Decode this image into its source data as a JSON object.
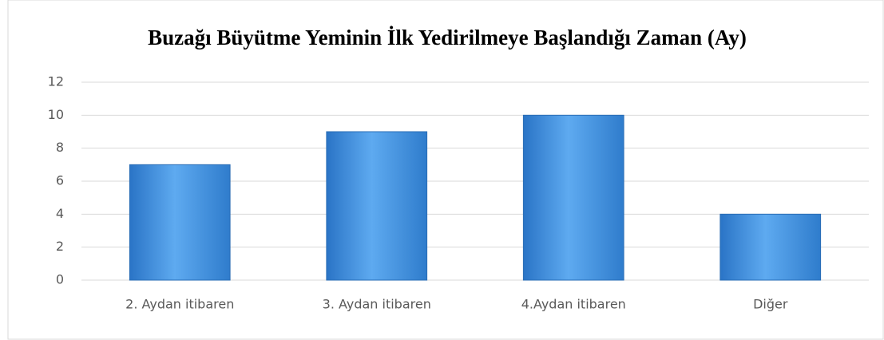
{
  "chart_data": {
    "type": "bar",
    "title": "Buzağı Büyütme Yeminin İlk Yedirilmeye Başlandığı Zaman (Ay)",
    "categories": [
      "2. Aydan itibaren",
      "3. Aydan itibaren",
      "4.Aydan itibaren",
      "Diğer"
    ],
    "values": [
      7,
      9,
      10,
      4
    ],
    "color": "#3d8fe0",
    "ylim": [
      0,
      12
    ],
    "yticks": [
      0,
      2,
      4,
      6,
      8,
      10,
      12
    ],
    "grid": true
  }
}
